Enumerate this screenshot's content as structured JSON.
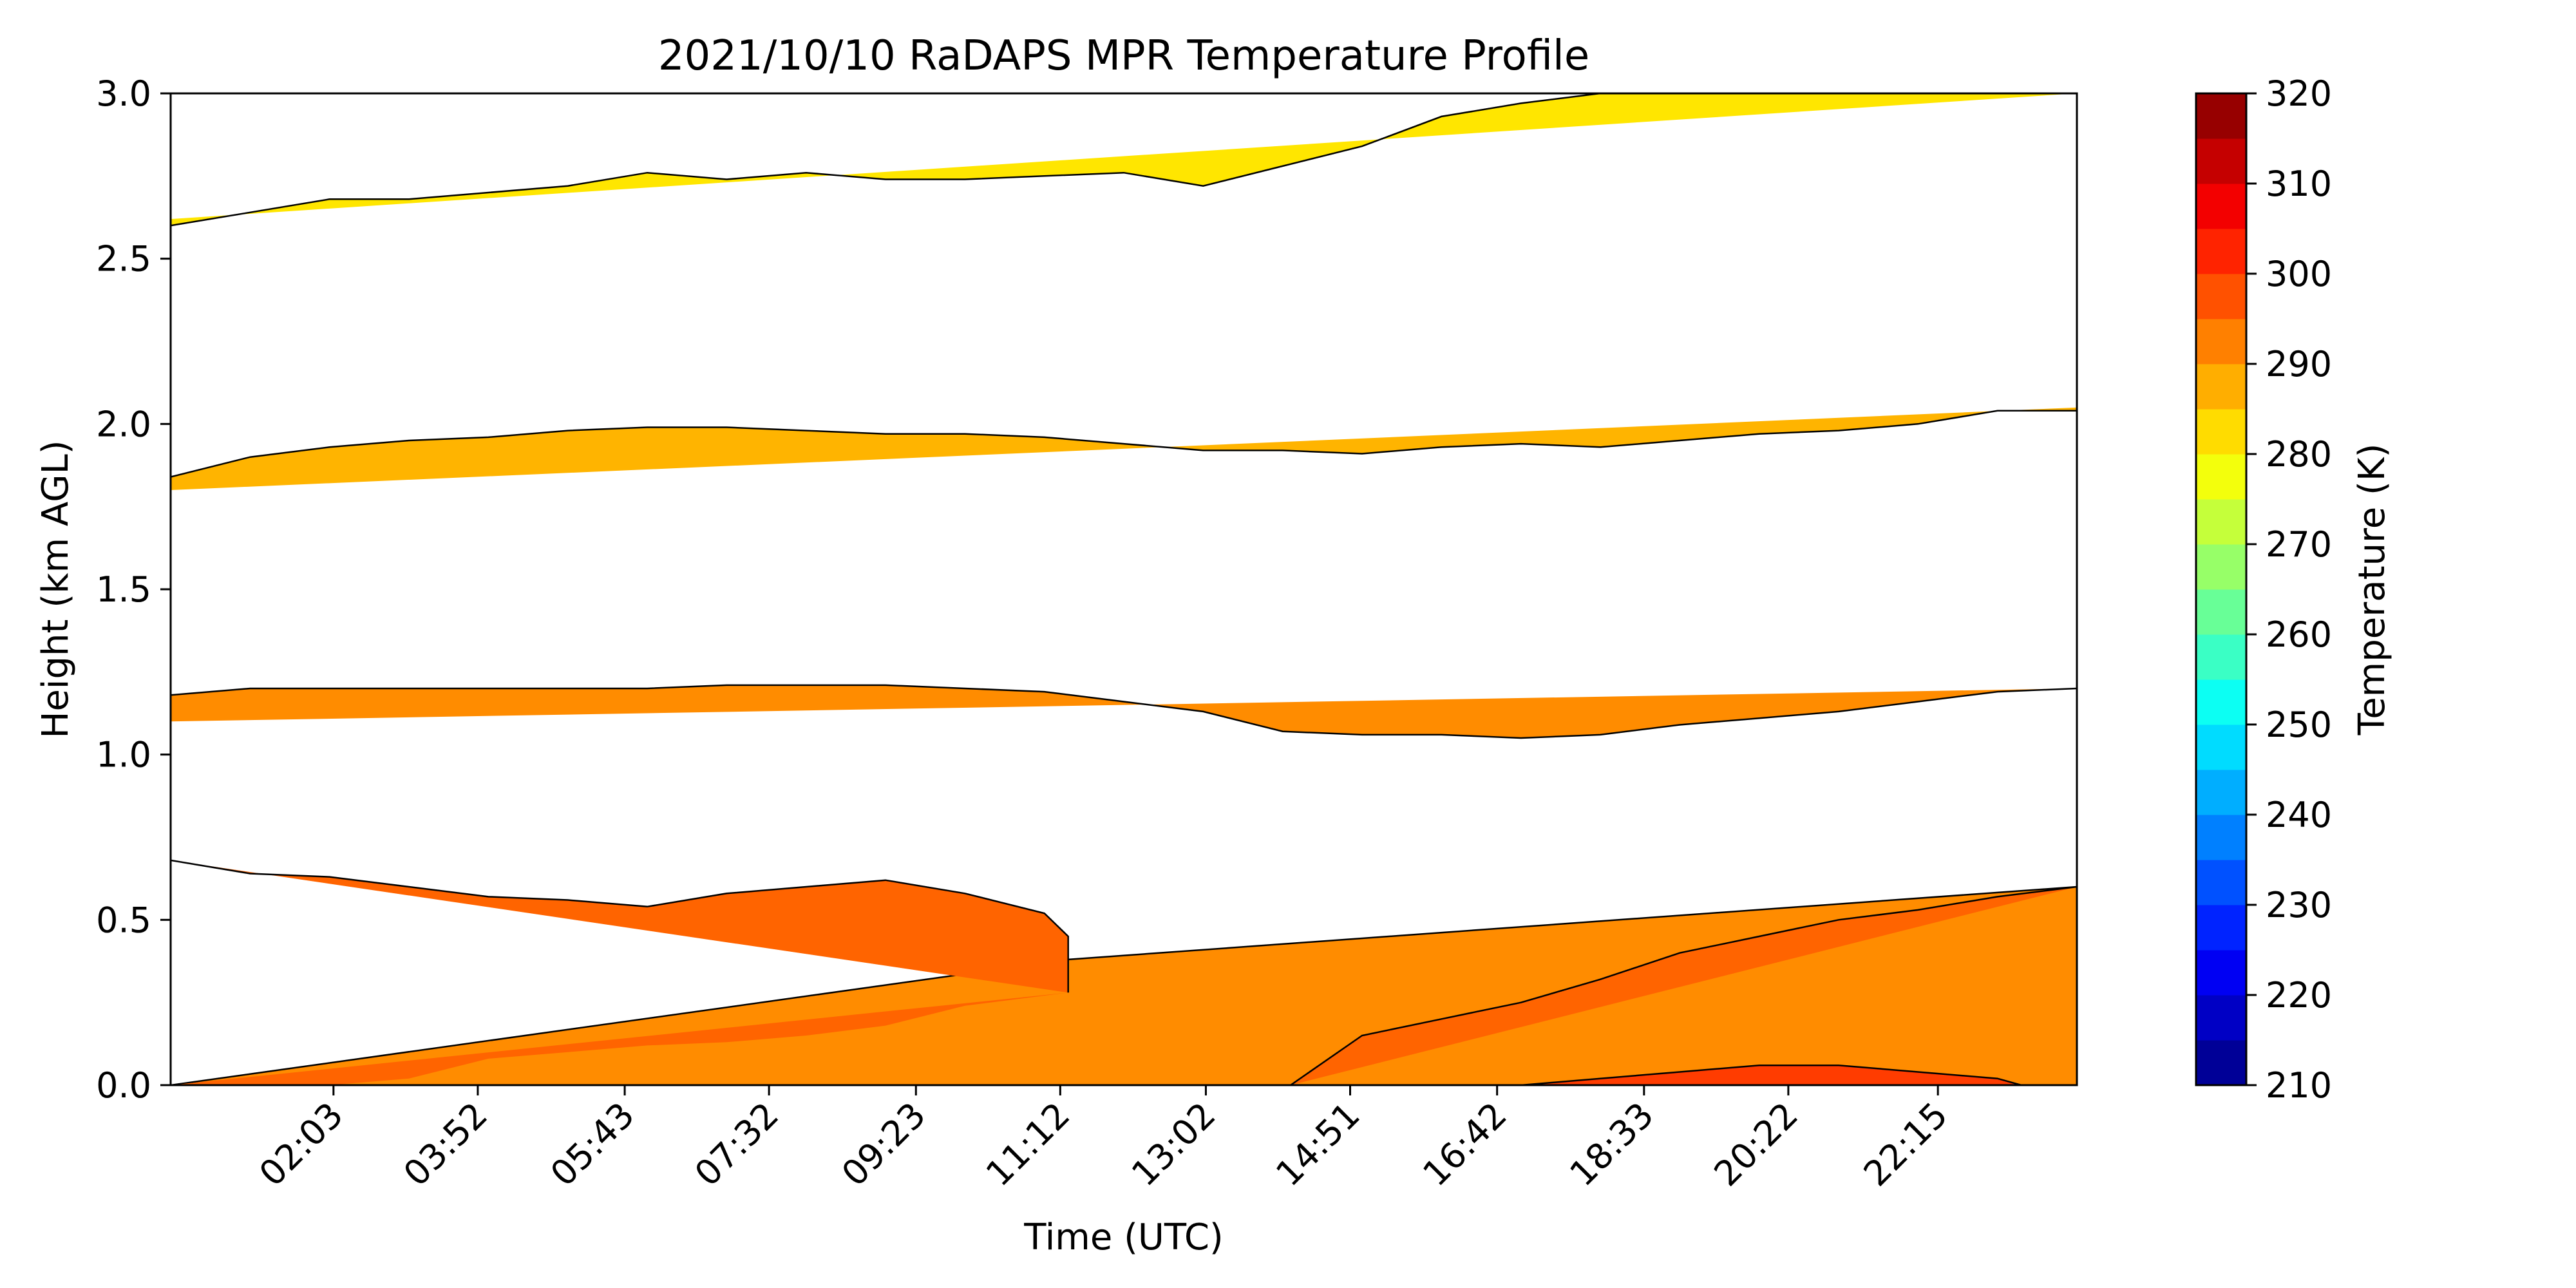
{
  "chart_data": {
    "type": "contour",
    "title": "2021/10/10 RaDAPS MPR Temperature Profile",
    "xlabel": "Time (UTC)",
    "ylabel": "Height (km AGL)",
    "xlim": [
      0,
      24
    ],
    "ylim": [
      0,
      3.0
    ],
    "x_ticks": [
      {
        "hour": 2.05,
        "label": "02:03"
      },
      {
        "hour": 3.8667,
        "label": "03:52"
      },
      {
        "hour": 5.7167,
        "label": "05:43"
      },
      {
        "hour": 7.5333,
        "label": "07:32"
      },
      {
        "hour": 9.3833,
        "label": "09:23"
      },
      {
        "hour": 11.2,
        "label": "11:12"
      },
      {
        "hour": 13.0333,
        "label": "13:02"
      },
      {
        "hour": 14.85,
        "label": "14:51"
      },
      {
        "hour": 16.7,
        "label": "16:42"
      },
      {
        "hour": 18.55,
        "label": "18:33"
      },
      {
        "hour": 20.3667,
        "label": "20:22"
      },
      {
        "hour": 22.25,
        "label": "22:15"
      }
    ],
    "y_ticks": [
      {
        "value": 0.0,
        "label": "0.0"
      },
      {
        "value": 0.5,
        "label": "0.5"
      },
      {
        "value": 1.0,
        "label": "1.0"
      },
      {
        "value": 1.5,
        "label": "1.5"
      },
      {
        "value": 2.0,
        "label": "2.0"
      },
      {
        "value": 2.5,
        "label": "2.5"
      },
      {
        "value": 3.0,
        "label": "3.0"
      }
    ],
    "colorbar": {
      "label": "Temperature (K)",
      "min": 210,
      "max": 320,
      "step": 5,
      "tick_labels": [
        "210",
        "220",
        "230",
        "240",
        "250",
        "260",
        "270",
        "280",
        "290",
        "300",
        "310",
        "320"
      ],
      "colormap": "jet"
    },
    "filled_bands": [
      {
        "name": "band_280_285",
        "color": "#ffe600",
        "upper": [
          [
            0,
            2.6
          ],
          [
            1,
            2.64
          ],
          [
            2,
            2.68
          ],
          [
            3,
            2.68
          ],
          [
            4,
            2.7
          ],
          [
            5,
            2.72
          ],
          [
            6,
            2.76
          ],
          [
            7,
            2.74
          ],
          [
            8,
            2.76
          ],
          [
            9,
            2.74
          ],
          [
            10,
            2.74
          ],
          [
            11,
            2.75
          ],
          [
            12,
            2.76
          ],
          [
            13,
            2.72
          ],
          [
            14,
            2.78
          ],
          [
            15,
            2.84
          ],
          [
            16,
            2.93
          ],
          [
            17,
            2.97
          ],
          [
            18,
            3.0
          ],
          [
            24,
            3.0
          ]
        ],
        "lower": [
          [
            0,
            2.62
          ],
          [
            24,
            3.0
          ]
        ]
      },
      {
        "name": "band_285_290",
        "color": "#ffb400",
        "upper": [
          [
            0,
            1.84
          ],
          [
            1,
            1.9
          ],
          [
            2,
            1.93
          ],
          [
            3,
            1.95
          ],
          [
            4,
            1.96
          ],
          [
            5,
            1.98
          ],
          [
            6,
            1.99
          ],
          [
            7,
            1.99
          ],
          [
            8,
            1.98
          ],
          [
            9,
            1.97
          ],
          [
            10,
            1.97
          ],
          [
            11,
            1.96
          ],
          [
            12,
            1.94
          ],
          [
            13,
            1.92
          ],
          [
            14,
            1.92
          ],
          [
            15,
            1.91
          ],
          [
            16,
            1.93
          ],
          [
            17,
            1.94
          ],
          [
            18,
            1.93
          ],
          [
            19,
            1.95
          ],
          [
            20,
            1.97
          ],
          [
            21,
            1.98
          ],
          [
            22,
            2.0
          ],
          [
            23,
            2.04
          ],
          [
            24,
            2.04
          ]
        ],
        "lower": [
          [
            0,
            1.8
          ],
          [
            24,
            2.05
          ]
        ]
      },
      {
        "name": "band_290_295",
        "color": "#ff8c00",
        "upper": [
          [
            0,
            1.18
          ],
          [
            1,
            1.2
          ],
          [
            2,
            1.2
          ],
          [
            3,
            1.2
          ],
          [
            4,
            1.2
          ],
          [
            5,
            1.2
          ],
          [
            6,
            1.2
          ],
          [
            7,
            1.21
          ],
          [
            8,
            1.21
          ],
          [
            9,
            1.21
          ],
          [
            10,
            1.2
          ],
          [
            11,
            1.19
          ],
          [
            12,
            1.16
          ],
          [
            13,
            1.13
          ],
          [
            14,
            1.07
          ],
          [
            15,
            1.06
          ],
          [
            16,
            1.06
          ],
          [
            17,
            1.05
          ],
          [
            18,
            1.06
          ],
          [
            19,
            1.09
          ],
          [
            20,
            1.11
          ],
          [
            21,
            1.13
          ],
          [
            22,
            1.16
          ],
          [
            23,
            1.19
          ],
          [
            24,
            1.2
          ]
        ],
        "lower": [
          [
            0,
            1.1
          ],
          [
            24,
            1.2
          ]
        ]
      },
      {
        "name": "band_low_290_295",
        "color": "#ff8c00",
        "upper": [
          [
            0,
            0.0
          ],
          [
            11.3,
            0.38
          ],
          [
            24,
            0.6
          ],
          [
            24,
            0.0
          ]
        ],
        "lower": [
          [
            0,
            0.0
          ],
          [
            24,
            0.0
          ]
        ]
      },
      {
        "name": "band_295_300",
        "color": "#ff6400",
        "upper": [
          [
            0,
            0.68
          ],
          [
            1,
            0.64
          ],
          [
            2,
            0.63
          ],
          [
            3,
            0.6
          ],
          [
            4,
            0.57
          ],
          [
            5,
            0.56
          ],
          [
            6,
            0.54
          ],
          [
            7,
            0.58
          ],
          [
            8,
            0.6
          ],
          [
            9,
            0.62
          ],
          [
            10,
            0.58
          ],
          [
            11,
            0.52
          ],
          [
            11.3,
            0.45
          ],
          [
            11.3,
            0.28
          ]
        ],
        "lower": [
          [
            11.3,
            0.28
          ],
          [
            10,
            0.24
          ],
          [
            9,
            0.18
          ],
          [
            8,
            0.15
          ],
          [
            7,
            0.13
          ],
          [
            6,
            0.12
          ],
          [
            5,
            0.1
          ],
          [
            4,
            0.08
          ],
          [
            3,
            0.02
          ],
          [
            2,
            0.0
          ],
          [
            0,
            0.0
          ]
        ]
      },
      {
        "name": "band_295_300_diag",
        "color": "#ff6400",
        "upper": [
          [
            14.1,
            0.0
          ],
          [
            15,
            0.15
          ],
          [
            16,
            0.2
          ],
          [
            17,
            0.25
          ],
          [
            18,
            0.32
          ],
          [
            19,
            0.4
          ],
          [
            20,
            0.45
          ],
          [
            21,
            0.5
          ],
          [
            22,
            0.53
          ],
          [
            23,
            0.57
          ],
          [
            24,
            0.6
          ]
        ],
        "lower": [
          [
            14.1,
            0.0
          ],
          [
            24,
            0.6
          ]
        ]
      },
      {
        "name": "band_300_305",
        "color": "#ff3c00",
        "upper": [
          [
            17,
            0.0
          ],
          [
            18,
            0.02
          ],
          [
            19,
            0.04
          ],
          [
            20,
            0.06
          ],
          [
            21,
            0.06
          ],
          [
            22,
            0.04
          ],
          [
            23,
            0.02
          ],
          [
            23.3,
            0.0
          ]
        ],
        "lower": [
          [
            17,
            0.0
          ],
          [
            23.3,
            0.0
          ]
        ]
      }
    ]
  }
}
